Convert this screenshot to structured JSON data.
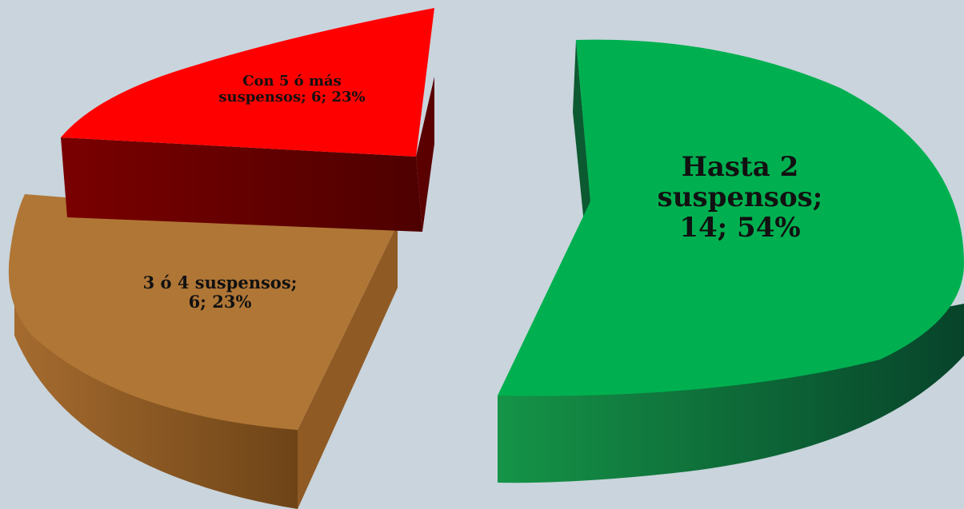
{
  "chart_data": {
    "type": "pie",
    "title": "",
    "slices": [
      {
        "category": "Hasta 2 suspensos",
        "value": 14,
        "percent": "54%",
        "label": "Hasta 2\nsuspensos;\n14; 54%",
        "color": "#00b050",
        "side_color": "#0b5d2c"
      },
      {
        "category": "3 ó 4 suspensos",
        "value": 6,
        "percent": "23%",
        "label": "3 ó 4 suspensos;\n6; 23%",
        "color": "#b07636",
        "side_color": "#7a4f1c"
      },
      {
        "category": "Con 5 ó más suspensos",
        "value": 6,
        "percent": "23%",
        "label": "Con 5 ó más\nsuspensos; 6; 23%",
        "color": "#ff0000",
        "side_color": "#650000"
      }
    ],
    "legend": "none",
    "style": "3d-exploded"
  }
}
